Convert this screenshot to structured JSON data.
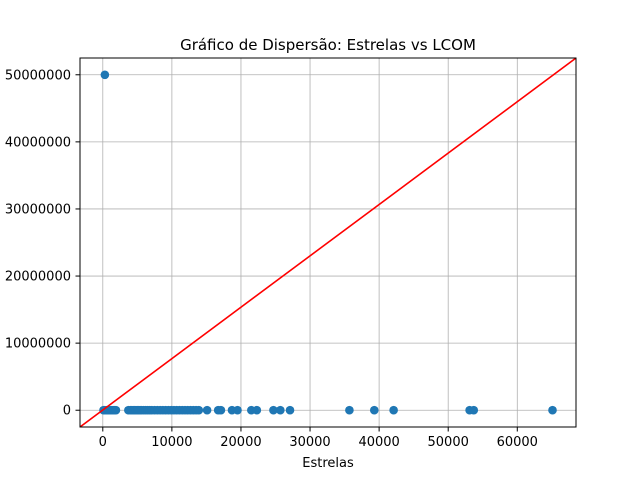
{
  "chart_data": {
    "type": "scatter",
    "title": "Gráfico de Dispersão: Estrelas vs LCOM",
    "xlabel": "Estrelas",
    "ylabel": "",
    "xlim": [
      -3300,
      68500
    ],
    "ylim": [
      -2500000,
      52500000
    ],
    "xticks": [
      0,
      10000,
      20000,
      30000,
      40000,
      50000,
      60000
    ],
    "yticks": [
      0,
      10000000,
      20000000,
      30000000,
      40000000,
      50000000
    ],
    "xtick_labels": [
      "0",
      "10000",
      "20000",
      "30000",
      "40000",
      "50000",
      "60000"
    ],
    "ytick_labels": [
      "0",
      "10000000",
      "20000000",
      "30000000",
      "40000000",
      "50000000"
    ],
    "grid": true,
    "point_color": "#1f77b4",
    "line_color": "#ff0000",
    "reference_line": {
      "x": [
        -3300,
        68500
      ],
      "y": [
        -2500000,
        52500000
      ]
    },
    "points": {
      "x": [
        300,
        100,
        250,
        500,
        700,
        900,
        1100,
        1300,
        1500,
        1700,
        1900,
        3700,
        4000,
        4200,
        4400,
        4600,
        4800,
        5000,
        5200,
        5400,
        5600,
        5900,
        6200,
        6500,
        6800,
        7100,
        7500,
        7900,
        8300,
        8700,
        9100,
        9500,
        9900,
        10300,
        10700,
        11100,
        11500,
        11900,
        12300,
        12700,
        13100,
        13500,
        13900,
        15100,
        16700,
        17100,
        18700,
        19500,
        21500,
        22300,
        24700,
        25700,
        27100,
        35700,
        39300,
        42100,
        53100,
        53700,
        65100
      ],
      "y": [
        50000000,
        0,
        0,
        0,
        0,
        0,
        0,
        0,
        0,
        0,
        0,
        0,
        0,
        0,
        0,
        0,
        0,
        0,
        0,
        0,
        0,
        0,
        0,
        0,
        0,
        0,
        0,
        0,
        0,
        0,
        0,
        0,
        0,
        0,
        0,
        0,
        0,
        0,
        0,
        0,
        0,
        0,
        0,
        0,
        0,
        0,
        0,
        0,
        0,
        0,
        0,
        0,
        0,
        0,
        0,
        0,
        0,
        0,
        0
      ]
    }
  }
}
